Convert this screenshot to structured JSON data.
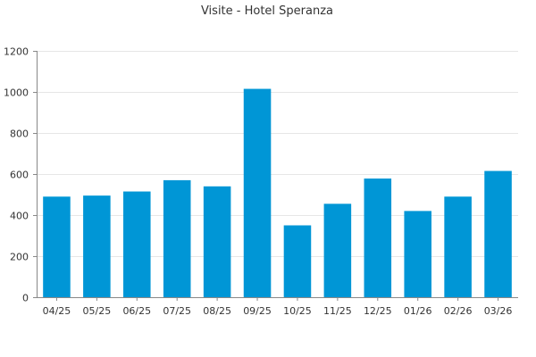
{
  "chart_data": {
    "type": "bar",
    "title": "Visite - Hotel Speranza",
    "xlabel": "",
    "ylabel": "",
    "categories": [
      "04/25",
      "05/25",
      "06/25",
      "07/25",
      "08/25",
      "09/25",
      "10/25",
      "11/25",
      "12/25",
      "01/26",
      "02/26",
      "03/26"
    ],
    "values": [
      490,
      495,
      515,
      570,
      540,
      1015,
      350,
      455,
      578,
      420,
      490,
      615
    ],
    "ylim": [
      0,
      1200
    ],
    "yticks": [
      0,
      200,
      400,
      600,
      800,
      1000,
      1200
    ],
    "grid": true,
    "legend": "none",
    "bar_color": "#0096d6",
    "axis_color": "#888888",
    "grid_color": "#e6e6e6"
  }
}
